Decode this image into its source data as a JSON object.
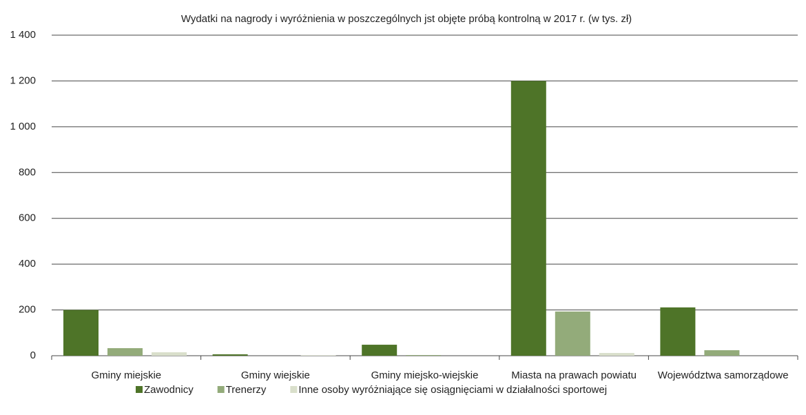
{
  "chart_data": {
    "type": "bar",
    "title": "Wydatki na nagrody i wyróżnienia w poszczególnych jst objęte próbą kontrolną w 2017 r. (w tys. zł)",
    "categories": [
      "Gminy miejskie",
      "Gminy wiejskie",
      "Gminy miejsko-wiejskie",
      "Miasta na prawach powiatu",
      "Województwa samorządowe"
    ],
    "series": [
      {
        "name": "Zawodnicy",
        "color": "#4e7428",
        "values": [
          200,
          6,
          48,
          1200,
          211
        ]
      },
      {
        "name": "Trenerzy",
        "color": "#93ab7a",
        "values": [
          33,
          0,
          3,
          193,
          24
        ]
      },
      {
        "name": "Inne osoby wyróżniające się osiągnięciami w działalności sportowej",
        "color": "#d9dfcb",
        "values": [
          15,
          2,
          0,
          12,
          0
        ]
      }
    ],
    "ylim": [
      0,
      1400
    ],
    "yticks": [
      0,
      200,
      400,
      600,
      800,
      {
        "value": 1000,
        "label": "1 000"
      },
      {
        "value": 1200,
        "label": "1 200"
      },
      {
        "value": 1400,
        "label": "1 400"
      }
    ],
    "grid": true,
    "legend": "bottom"
  }
}
